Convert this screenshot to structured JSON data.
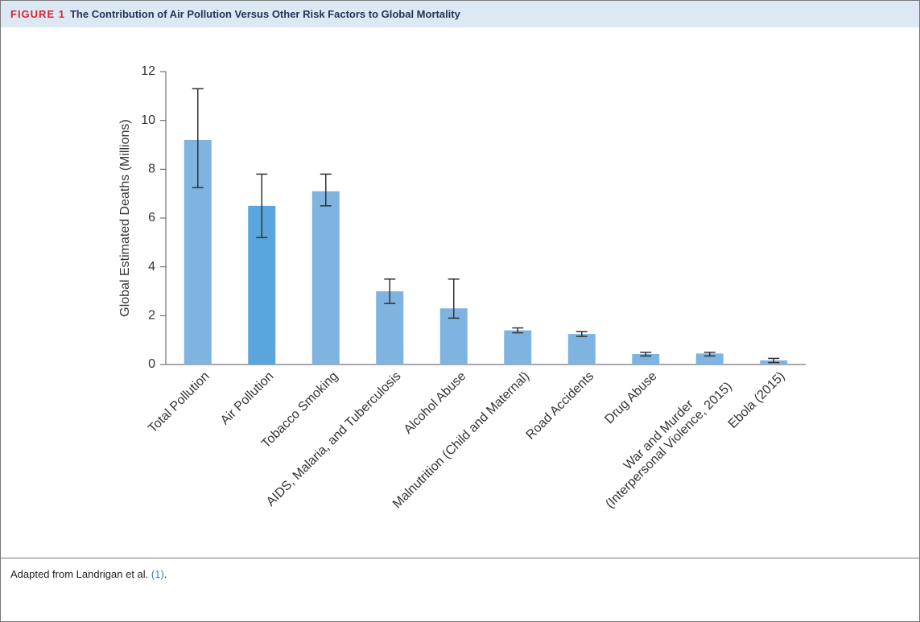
{
  "figure": {
    "label": "FIGURE 1",
    "title": "The Contribution of Air Pollution Versus Other Risk Factors to Global Mortality",
    "caption": "Adapted from Landrigan et al.",
    "reference": "(1)",
    "caption_end": "."
  },
  "chart_data": {
    "type": "bar",
    "y_label": "Global Estimated Deaths (Millions)",
    "categories": [
      "Total Pollution",
      "Air Pollution",
      "Tobacco Smoking",
      "AIDS, Malaria, and Tuberculosis",
      "Alcohol Abuse",
      "Malnutrition (Child and Maternal)",
      "Road Accidents",
      "Drug Abuse",
      "War and Murder\n(Interpersonal Violence, 2015)",
      "Ebola (2015)"
    ],
    "values": [
      9.2,
      6.5,
      7.1,
      3.0,
      2.3,
      1.4,
      1.25,
      0.43,
      0.45,
      0.17
    ],
    "lower": [
      7.25,
      5.2,
      6.5,
      2.5,
      1.9,
      1.3,
      1.15,
      0.35,
      0.35,
      0.08
    ],
    "upper": [
      11.3,
      7.8,
      7.8,
      3.5,
      3.5,
      1.5,
      1.35,
      0.5,
      0.5,
      0.25
    ],
    "colors": [
      "#7fb3e0",
      "#5aa6dc",
      "#7fb3e0",
      "#7fb3e0",
      "#7fb3e0",
      "#7fb3e0",
      "#7fb3e0",
      "#7fb3e0",
      "#7fb3e0",
      "#7fb3e0"
    ],
    "ylim": [
      0,
      12
    ],
    "yticks": [
      0,
      2,
      4,
      6,
      8,
      10,
      12
    ]
  }
}
